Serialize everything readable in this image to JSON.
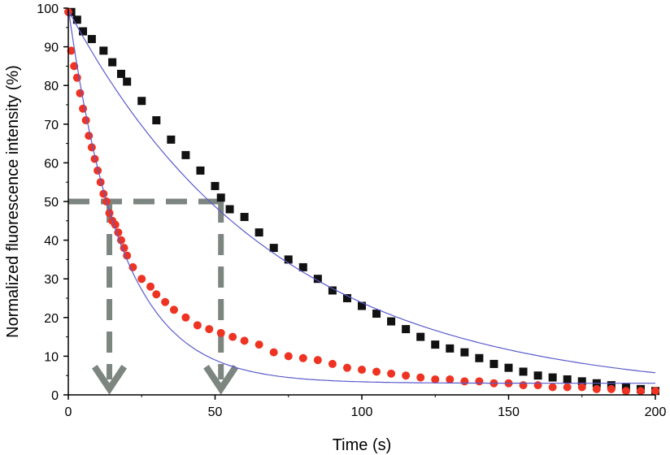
{
  "chart_data": {
    "type": "scatter",
    "title": "",
    "xlabel": "Time (s)",
    "ylabel": "Normalized fluorescence  intensity (%)",
    "xlim": [
      0,
      200
    ],
    "ylim": [
      0,
      100
    ],
    "x_ticks": [
      0,
      50,
      100,
      150,
      200
    ],
    "y_ticks": [
      0,
      10,
      20,
      30,
      40,
      50,
      60,
      70,
      80,
      90,
      100
    ],
    "grid": false,
    "legend": "none",
    "series": [
      {
        "marker": "square",
        "color": "#111111",
        "x": [
          1,
          3,
          5,
          8,
          12,
          15,
          18,
          20,
          25,
          30,
          35,
          40,
          45,
          50,
          52,
          55,
          60,
          65,
          70,
          75,
          80,
          85,
          90,
          95,
          100,
          105,
          110,
          115,
          120,
          125,
          130,
          135,
          140,
          145,
          150,
          155,
          160,
          165,
          170,
          175,
          180,
          185,
          190,
          195,
          200
        ],
        "y": [
          99,
          97,
          94,
          92,
          89,
          86,
          83,
          81,
          76,
          71,
          66,
          62,
          58,
          54,
          51,
          48,
          46,
          42,
          38,
          35,
          33,
          30,
          27,
          25,
          23,
          21,
          19,
          17,
          15,
          13,
          12,
          11,
          9.5,
          8,
          7,
          6,
          5,
          4.5,
          4,
          3.5,
          3,
          2.5,
          2,
          1.5,
          1
        ]
      },
      {
        "marker": "circle",
        "color": "#ee3322",
        "x": [
          0,
          1,
          2,
          3,
          4,
          5,
          6,
          7,
          8,
          9,
          10,
          11,
          12,
          13,
          14,
          15,
          16,
          17,
          18,
          19,
          20,
          22,
          25,
          28,
          30,
          33,
          36,
          40,
          44,
          48,
          52,
          56,
          60,
          65,
          70,
          75,
          80,
          85,
          90,
          95,
          100,
          105,
          110,
          115,
          120,
          125,
          130,
          135,
          140,
          145,
          150,
          155,
          160,
          165,
          170,
          175,
          180,
          185,
          190,
          195,
          200
        ],
        "y": [
          99,
          89,
          85,
          82,
          78,
          74,
          71,
          67,
          64,
          61,
          58,
          55,
          52,
          50,
          47,
          45,
          44,
          42,
          40,
          38,
          36,
          33,
          30,
          28,
          26,
          24,
          22,
          20,
          18,
          17,
          16,
          15,
          14,
          13,
          11,
          10,
          9.5,
          9,
          8,
          7,
          6.5,
          6,
          5.5,
          5,
          4.5,
          4,
          4,
          3.5,
          3.5,
          3,
          3,
          2.5,
          2.5,
          2,
          2,
          2,
          1.5,
          1.5,
          1,
          1,
          1
        ]
      }
    ],
    "fits": [
      {
        "color": "#5a5acd",
        "a": 99.5,
        "tau": 70,
        "c": 0
      },
      {
        "color": "#5a5acd",
        "a": 97,
        "tau": 18,
        "c": 3
      }
    ],
    "annotations": [
      {
        "type": "dashed-arrow",
        "color": "#7d8580",
        "y_level": 50,
        "x_drop": 14
      },
      {
        "type": "dashed-arrow",
        "color": "#7d8580",
        "y_level": 50,
        "x_drop": 52
      }
    ]
  }
}
